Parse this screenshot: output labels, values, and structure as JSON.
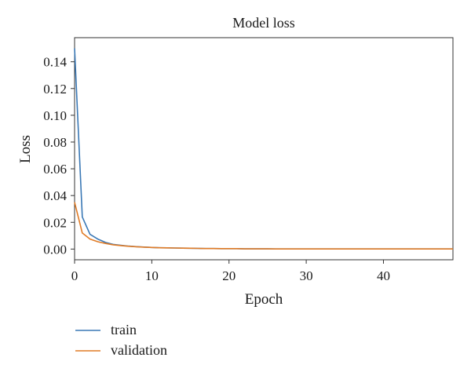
{
  "chart_data": {
    "type": "line",
    "title": "Model loss",
    "xlabel": "Epoch",
    "ylabel": "Loss",
    "xlim": [
      0,
      49
    ],
    "ylim": [
      -0.008,
      0.158
    ],
    "x_ticks": [
      0,
      10,
      20,
      30,
      40
    ],
    "y_ticks": [
      0.0,
      0.02,
      0.04,
      0.06,
      0.08,
      0.1,
      0.12,
      0.14
    ],
    "y_tick_labels": [
      "0.00",
      "0.02",
      "0.04",
      "0.06",
      "0.08",
      "0.10",
      "0.12",
      "0.14"
    ],
    "grid": false,
    "legend_position": "below-left",
    "x": [
      0,
      1,
      2,
      3,
      4,
      5,
      6,
      7,
      8,
      9,
      10,
      11,
      12,
      13,
      14,
      15,
      16,
      17,
      18,
      19,
      20,
      21,
      22,
      23,
      24,
      25,
      26,
      27,
      28,
      29,
      30,
      31,
      32,
      33,
      34,
      35,
      36,
      37,
      38,
      39,
      40,
      41,
      42,
      43,
      44,
      45,
      46,
      47,
      48,
      49
    ],
    "series": [
      {
        "name": "train",
        "color": "#3a78b5",
        "values": [
          0.15,
          0.024,
          0.011,
          0.0075,
          0.005,
          0.0035,
          0.0028,
          0.0022,
          0.0018,
          0.0015,
          0.0012,
          0.001,
          0.0009,
          0.0008,
          0.0007,
          0.0006,
          0.0005,
          0.0004,
          0.0004,
          0.0003,
          0.0003,
          0.0003,
          0.0002,
          0.0002,
          0.0002,
          0.0002,
          0.0001,
          0.0001,
          0.0001,
          0.0001,
          0.0001,
          0.0001,
          0.0001,
          0.0001,
          0.0001,
          0.0001,
          0.0001,
          0.0001,
          0.0001,
          0.0001,
          0.0001,
          0.0001,
          0.0001,
          0.0001,
          0.0001,
          0.0001,
          0.0001,
          0.0001,
          0.0001,
          0.0001
        ]
      },
      {
        "name": "validation",
        "color": "#e07b26",
        "values": [
          0.035,
          0.012,
          0.0075,
          0.0055,
          0.0042,
          0.0032,
          0.0026,
          0.0021,
          0.0017,
          0.0014,
          0.0012,
          0.001,
          0.0009,
          0.0008,
          0.0007,
          0.0006,
          0.0005,
          0.0004,
          0.0004,
          0.0003,
          0.0003,
          0.0003,
          0.0002,
          0.0002,
          0.0002,
          0.0002,
          0.0001,
          0.0001,
          0.0001,
          0.0001,
          0.0001,
          0.0001,
          0.0001,
          0.0001,
          0.0001,
          0.0001,
          0.0001,
          0.0001,
          0.0001,
          0.0001,
          0.0001,
          0.0001,
          0.0001,
          0.0001,
          0.0001,
          0.0001,
          0.0001,
          0.0001,
          0.0001,
          0.0001
        ]
      }
    ]
  }
}
